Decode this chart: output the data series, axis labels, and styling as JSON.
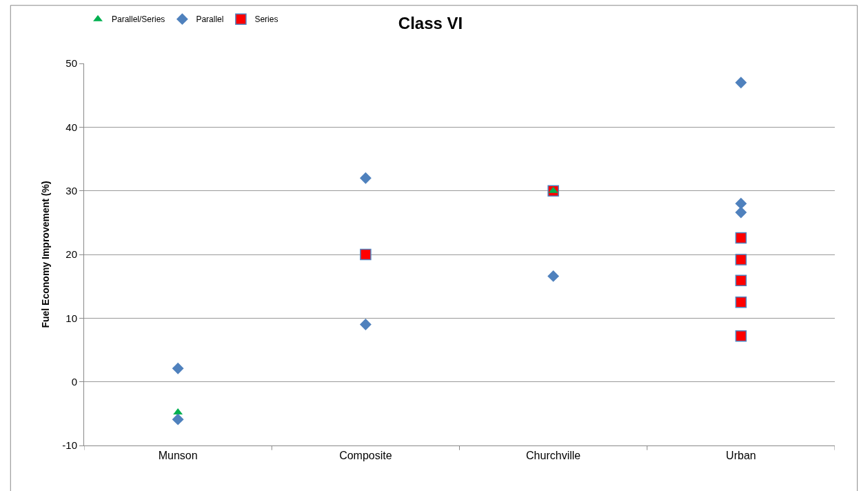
{
  "chart_data": {
    "type": "scatter",
    "title": "Class VI",
    "ylabel": "Fuel Economy Improvement (%)",
    "categories": [
      "Munson",
      "Composite",
      "Churchville",
      "Urban"
    ],
    "series": [
      {
        "name": "Parallel/Series",
        "color": "#00b050",
        "marker": "triangle",
        "x": [
          "Munson",
          "Churchville"
        ],
        "values": [
          -4.8,
          30
        ]
      },
      {
        "name": "Parallel",
        "color": "#4f81bd",
        "marker": "diamond",
        "x": [
          "Munson",
          "Munson",
          "Composite",
          "Composite",
          "Churchville",
          "Urban",
          "Urban",
          "Urban"
        ],
        "values": [
          2.1,
          -5.9,
          32,
          9,
          16.6,
          47,
          28,
          26.6
        ]
      },
      {
        "name": "Series",
        "color": "#ff0000",
        "marker": "square",
        "x": [
          "Composite",
          "Churchville",
          "Urban",
          "Urban",
          "Urban",
          "Urban",
          "Urban"
        ],
        "values": [
          20,
          30,
          22.6,
          19.2,
          15.9,
          12.5,
          7.2
        ]
      }
    ],
    "ylim": [
      -10,
      50
    ],
    "yticks": [
      -10,
      0,
      10,
      20,
      30,
      40,
      50
    ],
    "grid": "y",
    "legend": "top left"
  }
}
